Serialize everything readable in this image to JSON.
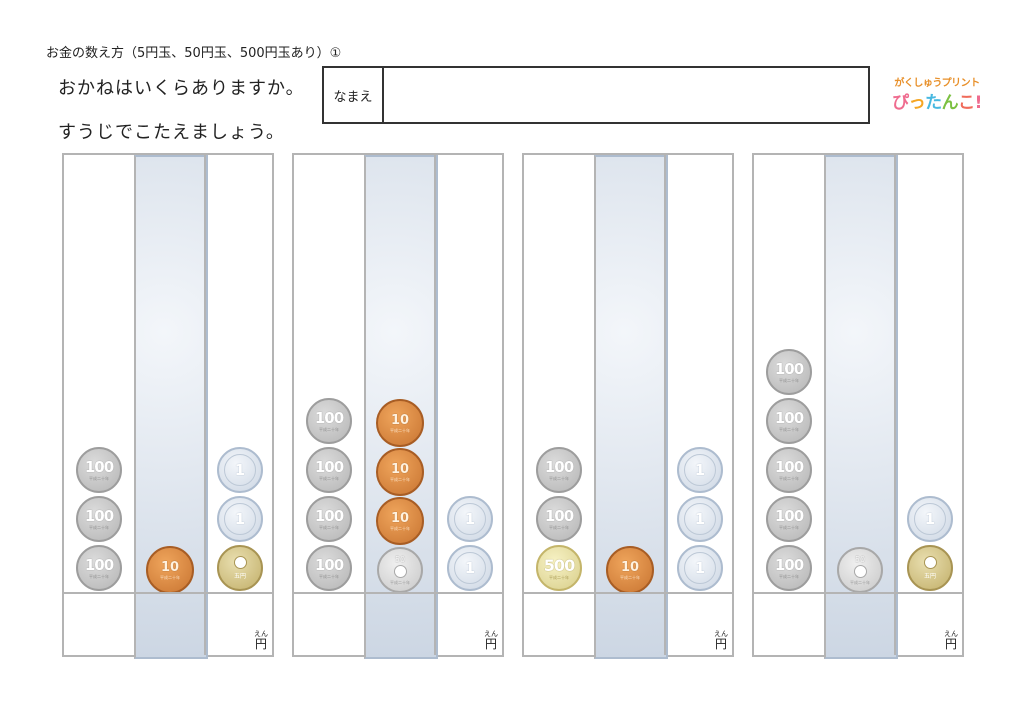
{
  "header": {
    "title": "お金の数え方（5円玉、50円玉、500円玉あり）①",
    "instruction_line1": "おかねはいくらありますか。",
    "instruction_line2": "すうじでこたえましょう。",
    "name_label": "なまえ"
  },
  "logo": {
    "line1": "がくしゅうプリント",
    "line2": [
      "ぴ",
      "っ",
      "た",
      "ん",
      "こ",
      "!"
    ]
  },
  "answer_unit": {
    "ruby": "えん",
    "kanji": "円"
  },
  "coin_text": {
    "c100": "100",
    "c10": "10",
    "c1": "1",
    "c5": "五円",
    "c50": "50",
    "c500": "500",
    "era_100": "平成二十年",
    "era_10": "平成二十年",
    "era_50": "平成二十年",
    "era_500": "平成二十年"
  },
  "problems": [
    {
      "columns": [
        {
          "coins": [
            "100",
            "100",
            "100"
          ]
        },
        {
          "coins": [
            "10"
          ]
        },
        {
          "coins": [
            "1",
            "1",
            "5"
          ]
        }
      ]
    },
    {
      "columns": [
        {
          "coins": [
            "100",
            "100",
            "100",
            "100"
          ]
        },
        {
          "coins": [
            "10",
            "10",
            "10",
            "50"
          ]
        },
        {
          "coins": [
            "1",
            "1"
          ]
        }
      ]
    },
    {
      "columns": [
        {
          "coins": [
            "100",
            "100",
            "500"
          ]
        },
        {
          "coins": [
            "10"
          ]
        },
        {
          "coins": [
            "1",
            "1",
            "1"
          ]
        }
      ]
    },
    {
      "columns": [
        {
          "coins": [
            "100",
            "100",
            "100",
            "100",
            "100"
          ]
        },
        {
          "coins": [
            "50"
          ]
        },
        {
          "coins": [
            "1",
            "5"
          ]
        }
      ]
    }
  ]
}
